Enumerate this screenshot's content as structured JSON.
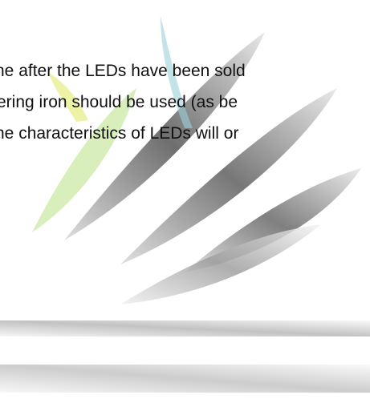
{
  "text_lines": [
    "ne after the LEDs have been sold",
    "ering iron should be used (as be",
    "ne characteristics of LEDs will or"
  ]
}
